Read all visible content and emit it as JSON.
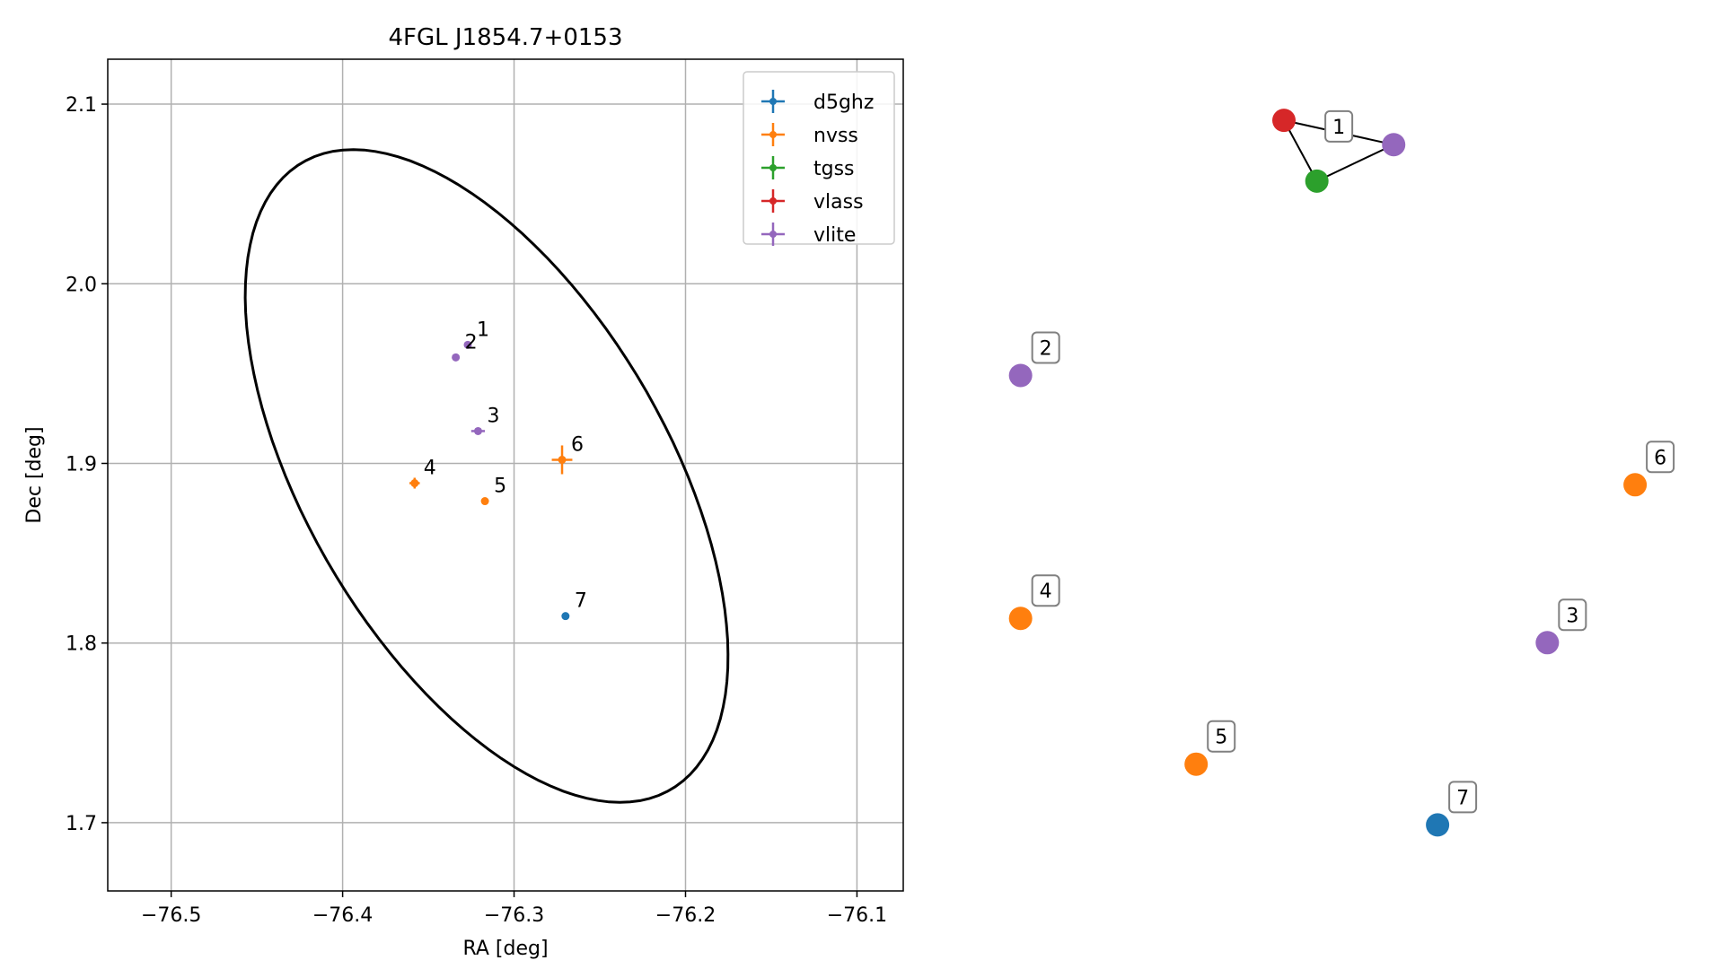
{
  "chart_data": [
    {
      "type": "scatter",
      "title": "4FGL J1854.7+0153",
      "xlabel": "RA [deg]",
      "ylabel": "Dec [deg]",
      "xlim": [
        -76.537,
        -76.073
      ],
      "ylim": [
        1.662,
        2.125
      ],
      "xticks": [
        -76.5,
        -76.4,
        -76.3,
        -76.2,
        -76.1
      ],
      "xtick_labels": [
        "−76.5",
        "−76.4",
        "−76.3",
        "−76.2",
        "−76.1"
      ],
      "yticks": [
        1.7,
        1.8,
        1.9,
        2.0,
        2.1
      ],
      "ytick_labels": [
        "1.7",
        "1.8",
        "1.9",
        "2.0",
        "2.1"
      ],
      "grid": true,
      "legend_placement": "top-right",
      "series": [
        {
          "name": "d5ghz",
          "color": "#1f77b4"
        },
        {
          "name": "nvss",
          "color": "#ff7f0e"
        },
        {
          "name": "tgss",
          "color": "#2ca02c"
        },
        {
          "name": "vlass",
          "color": "#d62728"
        },
        {
          "name": "vlite",
          "color": "#9467bd"
        }
      ],
      "points": [
        {
          "label": "1",
          "series": "vlite",
          "x": -76.327,
          "y": 1.966,
          "xerr": 0.002,
          "yerr": 0.002
        },
        {
          "label": "2",
          "series": "vlite",
          "x": -76.334,
          "y": 1.959,
          "xerr": 0.002,
          "yerr": 0.002
        },
        {
          "label": "3",
          "series": "vlite",
          "x": -76.321,
          "y": 1.918,
          "xerr": 0.004,
          "yerr": 0.002
        },
        {
          "label": "4",
          "series": "nvss",
          "x": -76.358,
          "y": 1.889,
          "xerr": 0.003,
          "yerr": 0.003
        },
        {
          "label": "5",
          "series": "nvss",
          "x": -76.317,
          "y": 1.879,
          "xerr": 0.002,
          "yerr": 0.002
        },
        {
          "label": "6",
          "series": "nvss",
          "x": -76.272,
          "y": 1.902,
          "xerr": 0.006,
          "yerr": 0.008
        },
        {
          "label": "7",
          "series": "d5ghz",
          "x": -76.27,
          "y": 1.815,
          "xerr": 0.001,
          "yerr": 0.001
        }
      ],
      "ellipse": {
        "center": [
          -76.316,
          1.893
        ],
        "semi_major": 0.205,
        "semi_minor": 0.104,
        "angle_deg": -57.5
      }
    },
    {
      "type": "network",
      "nodes": [
        {
          "id": "1a",
          "series": "vlass",
          "x": 0.14,
          "y": 0.93
        },
        {
          "id": "1b",
          "series": "tgss",
          "x": 0.17,
          "y": 0.88
        },
        {
          "id": "1c",
          "series": "vlite",
          "x": 0.24,
          "y": 0.91
        },
        {
          "id": "2",
          "series": "vlite",
          "label": "2",
          "x": -0.1,
          "y": 0.72
        },
        {
          "id": "6",
          "series": "nvss",
          "label": "6",
          "x": 0.46,
          "y": 0.63
        },
        {
          "id": "4",
          "series": "nvss",
          "label": "4",
          "x": -0.1,
          "y": 0.52
        },
        {
          "id": "3",
          "series": "vlite",
          "label": "3",
          "x": 0.38,
          "y": 0.5
        },
        {
          "id": "5",
          "series": "nvss",
          "label": "5",
          "x": 0.06,
          "y": 0.4
        },
        {
          "id": "7",
          "series": "d5ghz",
          "label": "7",
          "x": 0.28,
          "y": 0.35
        }
      ],
      "edges": [
        [
          "1a",
          "1b"
        ],
        [
          "1b",
          "1c"
        ],
        [
          "1a",
          "1c"
        ]
      ],
      "group_labels": [
        {
          "text": "1",
          "x": 0.19,
          "y": 0.925
        }
      ]
    }
  ]
}
